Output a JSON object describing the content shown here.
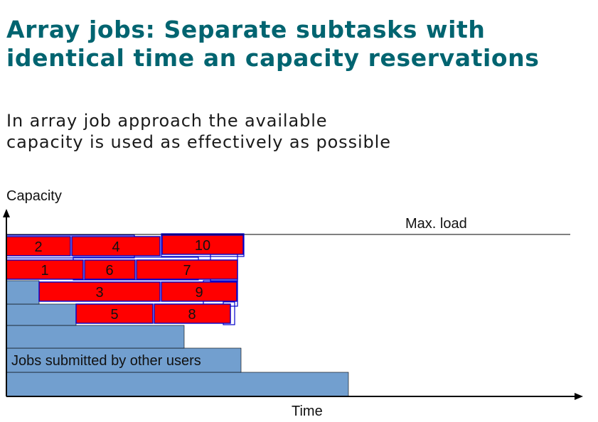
{
  "slide": {
    "title_lines": [
      "Array jobs: Separate subtasks with",
      "identical time an capacity reservations"
    ],
    "subtitle_lines": [
      "In array job approach the available",
      "capacity is used as effectively as possible"
    ]
  },
  "diagram": {
    "y_axis_label": "Capacity",
    "x_axis_label": "Time",
    "max_load_label": "Max. load",
    "other_users_label": "Jobs submitted by other users",
    "array_job_labels": [
      "1",
      "2",
      "3",
      "4",
      "5",
      "6",
      "7",
      "8",
      "9",
      "10"
    ]
  },
  "colors": {
    "title": "#006470",
    "other_users_fill": "#729fcf",
    "array_job_fill": "#ff0000",
    "array_job_border": "#0000cc",
    "axis": "#000000"
  }
}
